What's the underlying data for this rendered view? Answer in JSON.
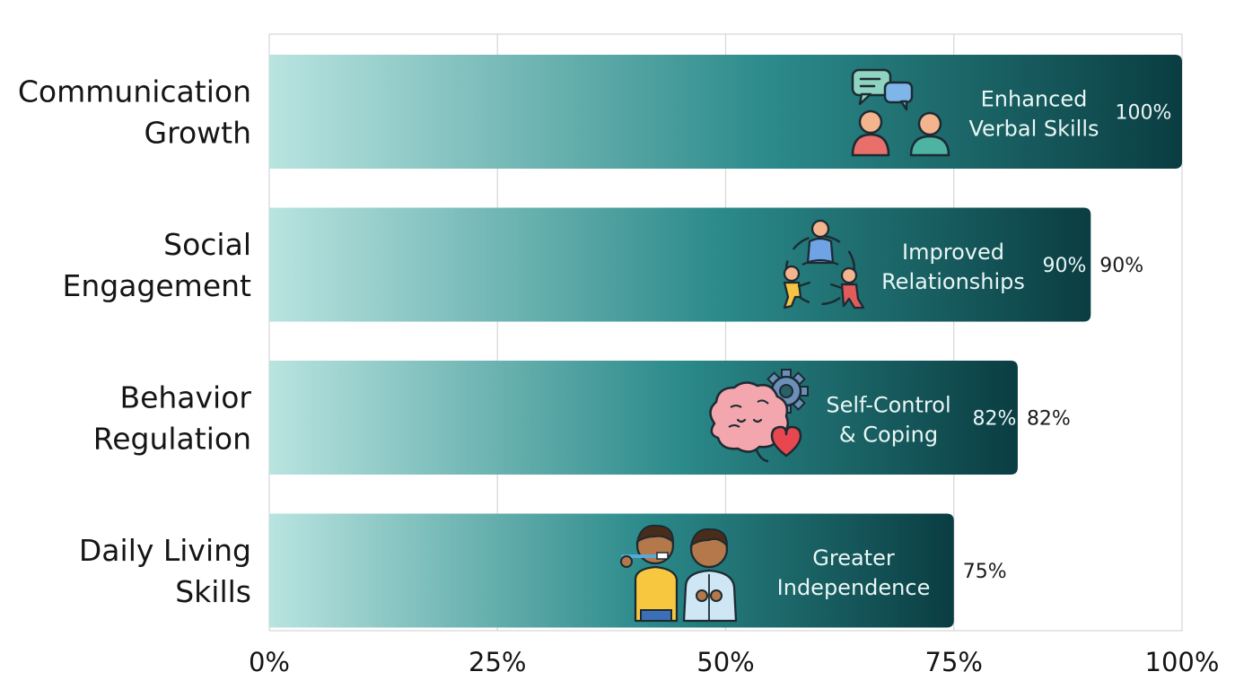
{
  "chart_data": {
    "type": "bar",
    "orientation": "horizontal",
    "categories": [
      [
        "Communication",
        "Growth"
      ],
      [
        "Social",
        "Engagement"
      ],
      [
        "Behavior",
        "Regulation"
      ],
      [
        "Daily Living",
        "Skills"
      ]
    ],
    "values": [
      100,
      90,
      82,
      75
    ],
    "bar_labels": [
      [
        "Enhanced",
        "Verbal Skills"
      ],
      [
        "Improved",
        "Relationships"
      ],
      [
        "Self-Control",
        "& Coping"
      ],
      [
        "Greater",
        "Independence"
      ]
    ],
    "inner_value_labels": [
      "100%",
      "90%",
      "82%",
      ""
    ],
    "outer_value_labels": [
      "",
      "90%",
      "82%",
      "75%"
    ],
    "bar_icons": [
      "conversation-people-icon",
      "group-circle-people-icon",
      "brain-gear-heart-icon",
      "kids-self-care-icon"
    ],
    "xticks": [
      "0%",
      "25%",
      "50%",
      "75%",
      "100%"
    ],
    "xlim": [
      0,
      100
    ],
    "grid": true,
    "colors": {
      "bar_start": "#b9e4e0",
      "bar_mid": "#2b8a8a",
      "bar_end": "#0a3d42",
      "grid": "#d6d6d6"
    }
  }
}
